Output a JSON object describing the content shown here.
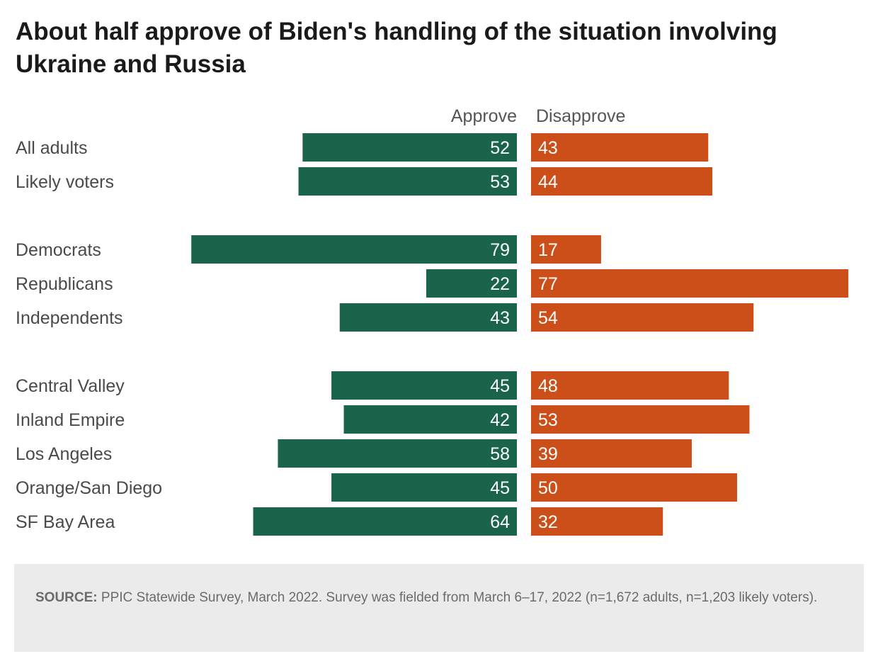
{
  "chart_data": {
    "type": "bar",
    "orientation": "diverging-horizontal",
    "title": "About half approve of Biden's handling of the situation involving Ukraine and Russia",
    "series": [
      {
        "name": "Approve",
        "color": "#1a644b",
        "values": [
          52,
          53,
          79,
          22,
          43,
          45,
          42,
          58,
          45,
          64
        ]
      },
      {
        "name": "Disapprove",
        "color": "#cc4f1a",
        "values": [
          43,
          44,
          17,
          77,
          54,
          48,
          53,
          39,
          50,
          32
        ]
      }
    ],
    "categories": [
      "All adults",
      "Likely voters",
      "Democrats",
      "Republicans",
      "Independents",
      "Central Valley",
      "Inland Empire",
      "Los Angeles",
      "Orange/San Diego",
      "SF Bay Area"
    ],
    "groups": [
      [
        0,
        1
      ],
      [
        2,
        3,
        4
      ],
      [
        5,
        6,
        7,
        8,
        9
      ]
    ],
    "xlim": [
      0,
      100
    ],
    "grid": false,
    "legend": "column headers above bars"
  },
  "source": {
    "label": "SOURCE:",
    "text": " PPIC Statewide Survey, March 2022. Survey was fielded from March 6–17, 2022 (n=1,672 adults, n=1,203 likely voters)."
  }
}
